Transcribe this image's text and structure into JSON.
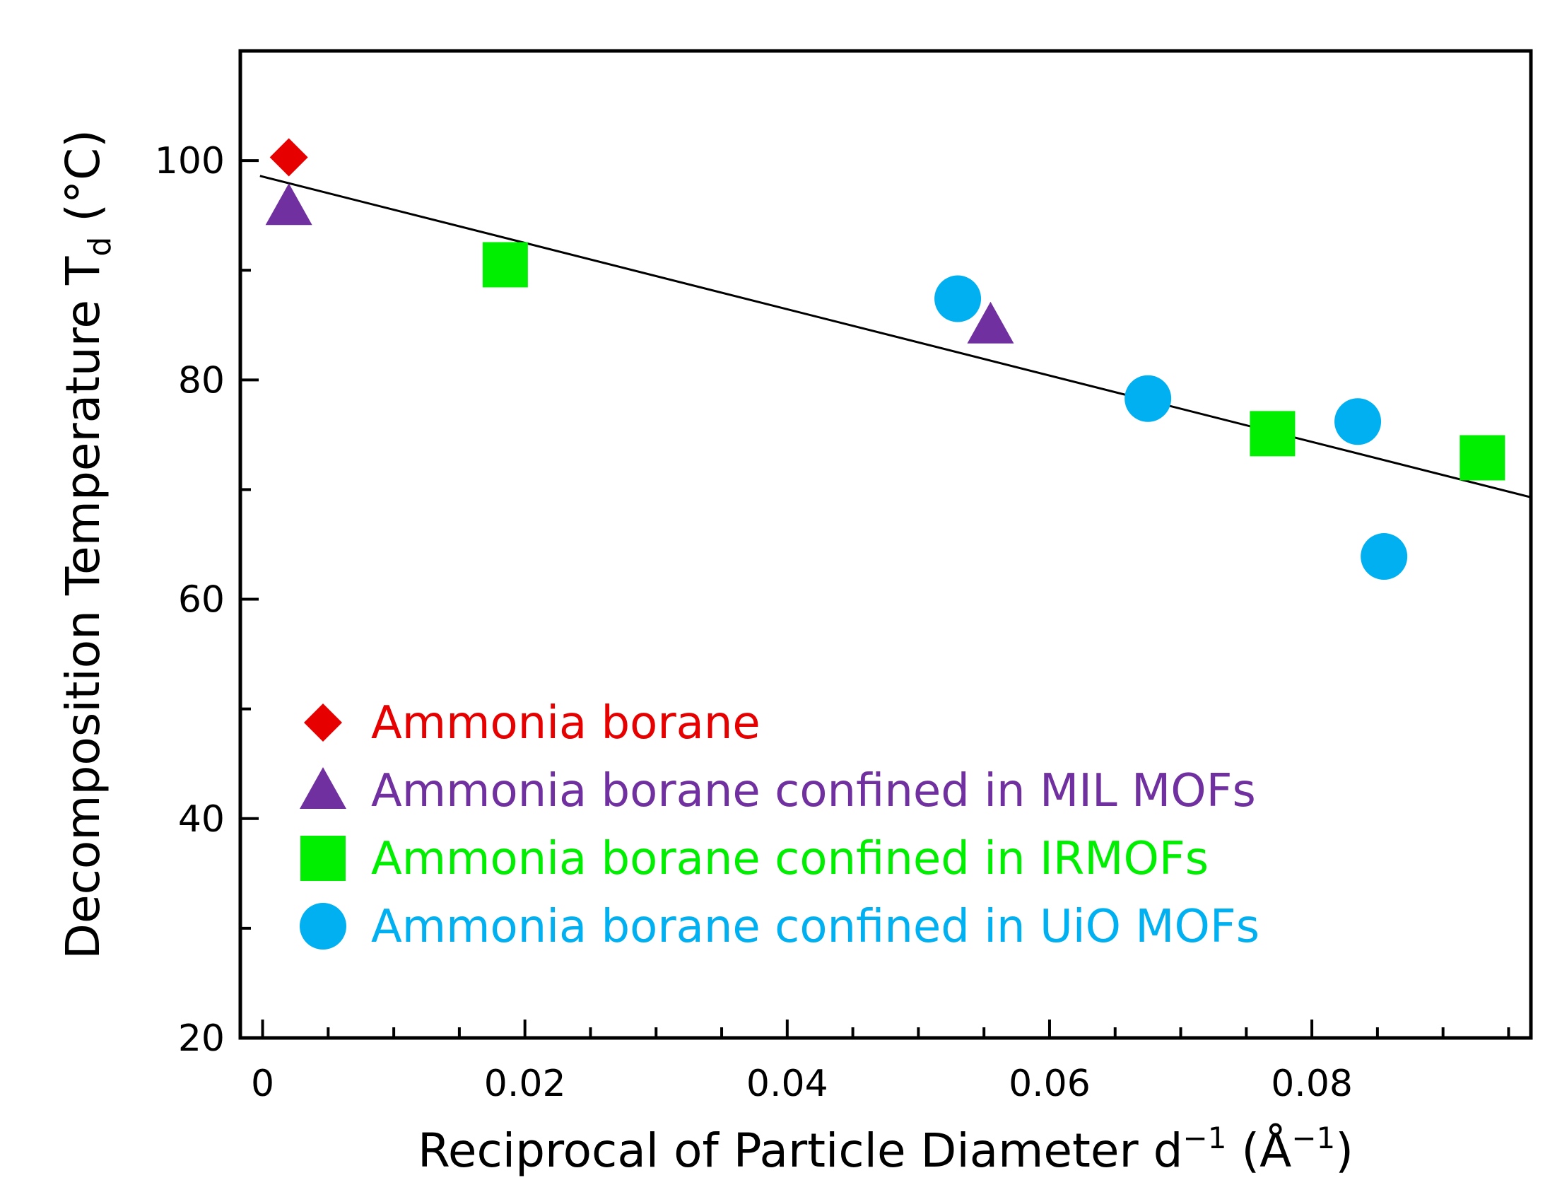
{
  "chart_data": {
    "type": "scatter",
    "title": "",
    "xlabel": {
      "main": "Reciprocal of Particle Diameter d",
      "sup1": "−1",
      "mid": " (Å",
      "sup2": "−1",
      "end": ")"
    },
    "ylabel": {
      "main": "Decomposition Temperature T",
      "sub": "d",
      "end": " (°C)"
    },
    "xlim": [
      -0.0017,
      0.0967
    ],
    "ylim": [
      20,
      110
    ],
    "x_ticks": [
      0,
      0.02,
      0.04,
      0.06,
      0.08
    ],
    "x_tick_labels": [
      "0",
      "0.02",
      "0.04",
      "0.06",
      "0.08"
    ],
    "x_minor_step": 0.005,
    "y_ticks": [
      20,
      40,
      60,
      80,
      100
    ],
    "y_tick_labels": [
      "20",
      "40",
      "60",
      "80",
      "100"
    ],
    "y_minor_step": 10,
    "grid": false,
    "legend_position": "lower-left",
    "fit_line": {
      "x": [
        -0.0002,
        0.0967
      ],
      "y": [
        98.6,
        69.3
      ],
      "color": "#000000"
    },
    "series": [
      {
        "name": "Ammonia borane",
        "marker": "diamond",
        "color": "#e60000",
        "points": [
          {
            "x": 0.002,
            "y": 100.3
          }
        ]
      },
      {
        "name": "Ammonia borane confined in MIL MOFs",
        "marker": "triangle",
        "color": "#7030a0",
        "points": [
          {
            "x": 0.002,
            "y": 95.8
          },
          {
            "x": 0.0555,
            "y": 85.0
          }
        ]
      },
      {
        "name": "Ammonia borane confined in IRMOFs",
        "marker": "square",
        "color": "#00ee00",
        "points": [
          {
            "x": 0.0185,
            "y": 90.5
          },
          {
            "x": 0.077,
            "y": 75.1
          },
          {
            "x": 0.093,
            "y": 72.9
          }
        ]
      },
      {
        "name": "Ammonia borane confined in UiO MOFs",
        "marker": "circle",
        "color": "#00b0f0",
        "points": [
          {
            "x": 0.053,
            "y": 87.4
          },
          {
            "x": 0.0675,
            "y": 78.3
          },
          {
            "x": 0.0835,
            "y": 76.2
          },
          {
            "x": 0.0855,
            "y": 63.9
          }
        ]
      }
    ]
  }
}
